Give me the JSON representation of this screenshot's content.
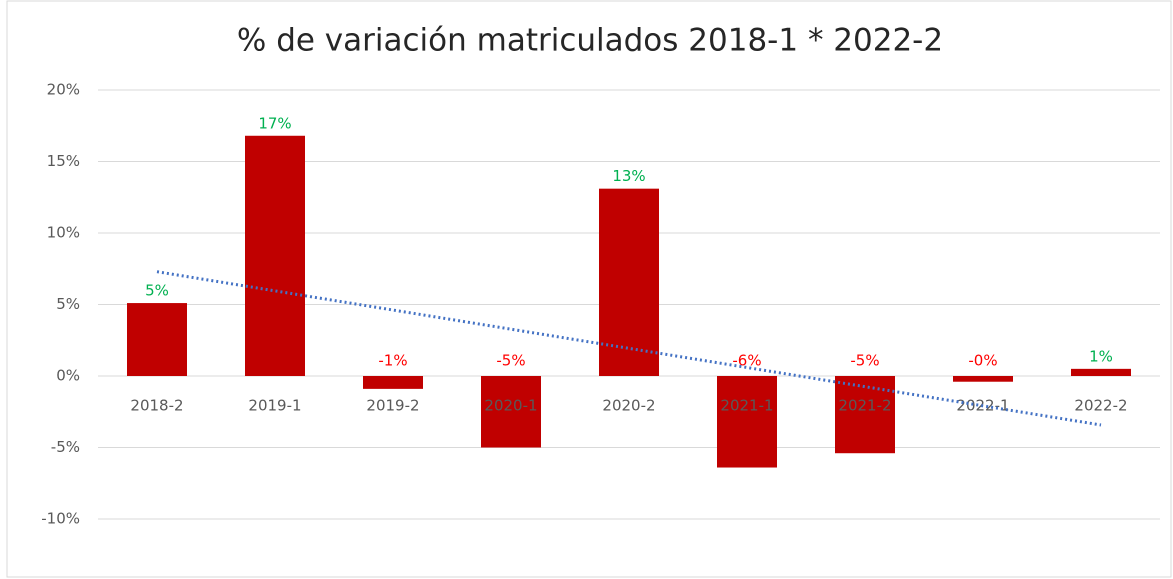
{
  "chart_data": {
    "type": "bar",
    "title": "% de variación matriculados 2018-1 * 2022-2",
    "categories": [
      "2018-2",
      "2019-1",
      "2019-2",
      "2020-1",
      "2020-2",
      "2021-1",
      "2021-2",
      "2022-1",
      "2022-2"
    ],
    "values": [
      5.1,
      16.8,
      -0.9,
      -5.0,
      13.1,
      -6.4,
      -5.4,
      -0.4,
      0.5
    ],
    "value_labels": [
      "5%",
      "17%",
      "-1%",
      "-5%",
      "13%",
      "-6%",
      "-5%",
      "-0%",
      "1%"
    ],
    "color": "#c00000",
    "positive_label_color": "#00b050",
    "negative_label_color": "#ff0000",
    "trendline": true,
    "trendline_color": "#4472c4",
    "ylim": [
      -10,
      20
    ],
    "yticks": [
      {
        "value": -10,
        "label": "-10%"
      },
      {
        "value": -5,
        "label": "-5%"
      },
      {
        "value": 0,
        "label": "0%"
      },
      {
        "value": 5,
        "label": "5%"
      },
      {
        "value": 10,
        "label": "10%"
      },
      {
        "value": 15,
        "label": "15%"
      },
      {
        "value": 20,
        "label": "20%"
      }
    ],
    "grid": true
  }
}
